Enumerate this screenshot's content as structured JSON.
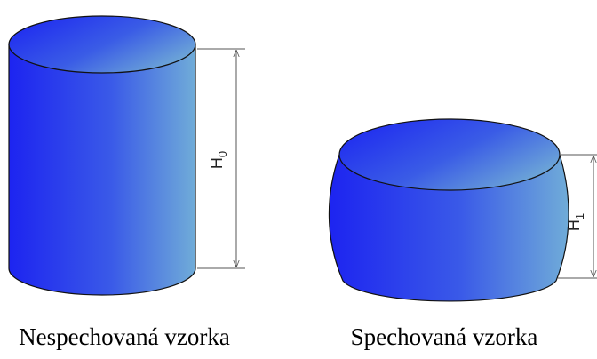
{
  "samples": [
    {
      "caption": "Nespechovaná vzorka",
      "dimension": {
        "symbol": "H",
        "subscript": "0"
      }
    },
    {
      "caption": "Spechovaná vzorka",
      "dimension": {
        "symbol": "H",
        "subscript": "1"
      }
    }
  ]
}
